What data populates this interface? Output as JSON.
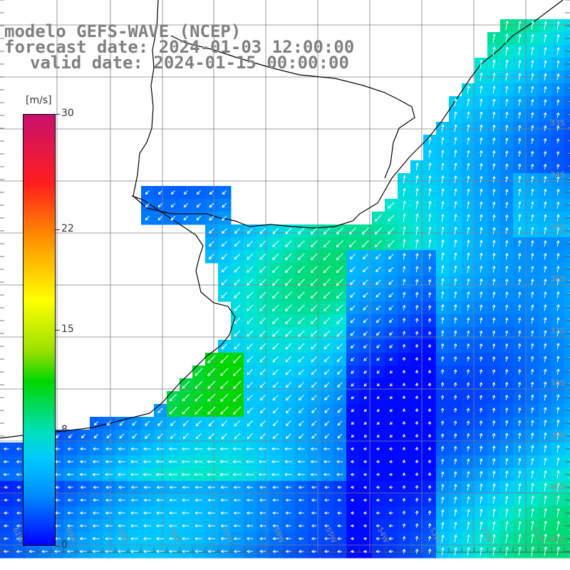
{
  "title": {
    "line1": "modelo GEFS-WAVE (NCEP)",
    "line2": "forecast date: 2024-01-03 12:00:00",
    "line3": "valid date: 2024-01-15 00:00:00"
  },
  "colorbar": {
    "unit": "[m/s]",
    "ticks": [
      "30",
      "22",
      "15",
      "8",
      "0"
    ],
    "tick_values": [
      30,
      22,
      15,
      8,
      0
    ],
    "min": 0,
    "max": 30,
    "colors": [
      "#0000ff",
      "#0090ff",
      "#00c8ff",
      "#00e0c0",
      "#00d600",
      "#9ae000",
      "#ffff00",
      "#ff8a00",
      "#ff1e1e",
      "#c8106e"
    ]
  },
  "map": {
    "variable": "wind speed and direction",
    "lat_labels": [
      "33S",
      "34S",
      "35S",
      "36S",
      "37S",
      "38S",
      "39S",
      "40S",
      "41S"
    ],
    "lon_labels": [
      "61W",
      "60W",
      "59W",
      "58W",
      "57W",
      "56W",
      "55W",
      "54W",
      "53W",
      "52W",
      "51W"
    ],
    "coastline_color": "#000000",
    "grid_color": "#808080"
  }
}
